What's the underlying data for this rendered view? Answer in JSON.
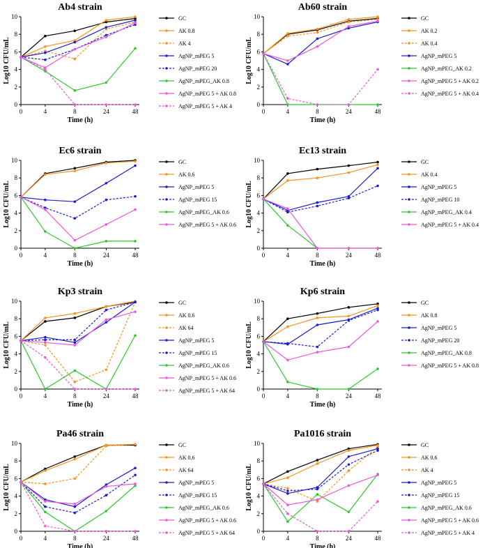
{
  "figure": {
    "title": "Bacterial growth curves of eight strains under AgNP_mPEG and amikacin (AK) treatments"
  },
  "colors": {
    "GC": "#000000",
    "AK": "#f7931e",
    "AgNP": "#1c1ccc",
    "AgNP_AK": "#2dc82d",
    "combo": "#ee55dd"
  },
  "chart_data": [
    {
      "type": "line",
      "title": "Ab4 strain",
      "xlabel": "Time (h)",
      "ylabel": "Log10 CFU/mL",
      "categories": [
        "0",
        "4",
        "8",
        "24",
        "48"
      ],
      "ylim": [
        0,
        10
      ],
      "yticks": [
        "0",
        "2",
        "4",
        "6",
        "8",
        "10"
      ],
      "series": [
        {
          "name": "GC",
          "color": "#000000",
          "dashed": false,
          "values": [
            5.4,
            7.8,
            8.4,
            9.4,
            9.8
          ]
        },
        {
          "name": "AK 0.8",
          "color": "#f7931e",
          "dashed": false,
          "values": [
            5.4,
            6.6,
            7.3,
            9.6,
            10.0
          ]
        },
        {
          "name": "AK 4",
          "color": "#f7931e",
          "dashed": true,
          "values": [
            5.4,
            6.1,
            5.2,
            8.6,
            9.4
          ]
        },
        {
          "name": "AgNP_mPEG 5",
          "color": "#1c1ccc",
          "dashed": false,
          "values": [
            5.4,
            5.9,
            7.1,
            8.8,
            9.6
          ]
        },
        {
          "name": "AgNP_mPEG 20",
          "color": "#1c1ccc",
          "dashed": true,
          "values": [
            5.4,
            5.1,
            6.3,
            7.9,
            9.1
          ]
        },
        {
          "name": "AgNP_mPEG_AK 0.8",
          "color": "#2dc82d",
          "dashed": false,
          "values": [
            5.4,
            3.8,
            1.6,
            2.5,
            6.4
          ]
        },
        {
          "name": "AgNP_mPEG 5 + AK 0.8",
          "color": "#ee55dd",
          "dashed": false,
          "values": [
            5.4,
            4.2,
            6.3,
            7.7,
            9.3
          ]
        },
        {
          "name": "AgNP_mPEG 5 + AK 4",
          "color": "#ee55dd",
          "dashed": true,
          "values": [
            5.4,
            4.0,
            0,
            0,
            0
          ]
        }
      ]
    },
    {
      "type": "line",
      "title": "Ab60 strain",
      "xlabel": "Time (h)",
      "ylabel": "Log10 CFU/mL",
      "categories": [
        "0",
        "4",
        "8",
        "24",
        "48"
      ],
      "ylim": [
        0,
        10
      ],
      "yticks": [
        "0",
        "2",
        "4",
        "6",
        "8",
        "10"
      ],
      "series": [
        {
          "name": "GC",
          "color": "#000000",
          "dashed": false,
          "values": [
            5.8,
            8.0,
            8.5,
            9.5,
            9.8
          ]
        },
        {
          "name": "AK 0.2",
          "color": "#f7931e",
          "dashed": false,
          "values": [
            5.8,
            8.1,
            8.6,
            9.7,
            10.0
          ]
        },
        {
          "name": "AK 0.4",
          "color": "#f7931e",
          "dashed": true,
          "values": [
            5.8,
            7.8,
            8.2,
            9.4,
            9.7
          ]
        },
        {
          "name": "AgNP_mPEG 5",
          "color": "#1c1ccc",
          "dashed": false,
          "values": [
            5.8,
            4.6,
            7.5,
            8.7,
            9.4
          ]
        },
        {
          "name": "AgNP_mPEG_AK 0.2",
          "color": "#2dc82d",
          "dashed": false,
          "values": [
            5.8,
            0,
            0,
            0,
            0
          ]
        },
        {
          "name": "AgNP_mPEG 5 + AK 0.2",
          "color": "#ee55dd",
          "dashed": false,
          "values": [
            5.8,
            5.0,
            6.6,
            8.9,
            9.5
          ]
        },
        {
          "name": "AgNP_mPEG 5 + AK 0.4",
          "color": "#ee55dd",
          "dashed": true,
          "values": [
            5.8,
            0.7,
            0,
            0,
            4.0
          ]
        }
      ]
    },
    {
      "type": "line",
      "title": "Ec6 strain",
      "xlabel": "Time (h)",
      "ylabel": "Log10 CFU/mL",
      "categories": [
        "0",
        "4",
        "8",
        "24",
        "48"
      ],
      "ylim": [
        0,
        10
      ],
      "yticks": [
        "0",
        "2",
        "4",
        "6",
        "8",
        "10"
      ],
      "series": [
        {
          "name": "GC",
          "color": "#000000",
          "dashed": false,
          "values": [
            5.8,
            8.5,
            9.1,
            9.8,
            10.0
          ]
        },
        {
          "name": "AK 0.6",
          "color": "#f7931e",
          "dashed": false,
          "values": [
            5.8,
            8.4,
            8.8,
            9.7,
            9.9
          ]
        },
        {
          "name": "AgNP_mPEG 5",
          "color": "#1c1ccc",
          "dashed": false,
          "values": [
            5.8,
            5.5,
            5.3,
            7.4,
            9.4
          ]
        },
        {
          "name": "AgNP_mPEG 15",
          "color": "#1c1ccc",
          "dashed": true,
          "values": [
            5.8,
            4.6,
            3.4,
            5.5,
            5.9
          ]
        },
        {
          "name": "AgNP_mPEG_AK 0.6",
          "color": "#2dc82d",
          "dashed": false,
          "values": [
            5.8,
            1.9,
            0,
            0.8,
            0.8
          ]
        },
        {
          "name": "AgNP_mPEG 5 + AK 0.6",
          "color": "#ee55dd",
          "dashed": false,
          "values": [
            5.8,
            4.4,
            0.9,
            2.7,
            4.4
          ]
        }
      ]
    },
    {
      "type": "line",
      "title": "Ec13 strain",
      "xlabel": "Time (h)",
      "ylabel": "Log10 CFU/mL",
      "categories": [
        "0",
        "4",
        "8",
        "24",
        "48"
      ],
      "ylim": [
        0,
        10
      ],
      "yticks": [
        "0",
        "2",
        "4",
        "6",
        "8",
        "10"
      ],
      "series": [
        {
          "name": "GC",
          "color": "#000000",
          "dashed": false,
          "values": [
            5.6,
            8.5,
            9.0,
            9.4,
            9.8
          ]
        },
        {
          "name": "AK 0.4",
          "color": "#f7931e",
          "dashed": false,
          "values": [
            5.6,
            7.7,
            8.0,
            8.6,
            9.5
          ]
        },
        {
          "name": "AgNP_mPEG 5",
          "color": "#1c1ccc",
          "dashed": false,
          "values": [
            5.6,
            4.3,
            5.2,
            5.9,
            9.1
          ]
        },
        {
          "name": "AgNP_mPEG 10",
          "color": "#1c1ccc",
          "dashed": true,
          "values": [
            5.6,
            4.1,
            4.8,
            5.7,
            7.1
          ]
        },
        {
          "name": "AgNP_mPEG_AK 0.4",
          "color": "#2dc82d",
          "dashed": false,
          "values": [
            5.6,
            2.6,
            0,
            0,
            0
          ]
        },
        {
          "name": "AgNP_mPEG 5 + AK 0.4",
          "color": "#ee55dd",
          "dashed": false,
          "values": [
            5.6,
            4.5,
            0,
            0,
            0
          ]
        }
      ]
    },
    {
      "type": "line",
      "title": "Kp3 strain",
      "xlabel": "Time (h)",
      "ylabel": "Log10 CFU/mL",
      "categories": [
        "0",
        "4",
        "8",
        "24",
        "48"
      ],
      "ylim": [
        0,
        10
      ],
      "yticks": [
        "0",
        "2",
        "4",
        "6",
        "8",
        "10"
      ],
      "series": [
        {
          "name": "GC",
          "color": "#000000",
          "dashed": false,
          "values": [
            5.5,
            7.7,
            8.1,
            9.4,
            9.9
          ]
        },
        {
          "name": "AK 0.6",
          "color": "#f7931e",
          "dashed": false,
          "values": [
            5.5,
            8.1,
            8.6,
            9.4,
            10.0
          ]
        },
        {
          "name": "AK 64",
          "color": "#f7931e",
          "dashed": true,
          "values": [
            5.5,
            5.0,
            0.8,
            2.2,
            9.9
          ]
        },
        {
          "name": "AgNP_mPEG 5",
          "color": "#1c1ccc",
          "dashed": false,
          "values": [
            5.5,
            5.9,
            5.3,
            7.6,
            9.9
          ]
        },
        {
          "name": "AgNP_mPEG 15",
          "color": "#1c1ccc",
          "dashed": true,
          "values": [
            5.5,
            5.6,
            5.6,
            9.0,
            9.9
          ]
        },
        {
          "name": "AgNP_mPEG_AK 0.6",
          "color": "#2dc82d",
          "dashed": false,
          "values": [
            5.5,
            0,
            2.1,
            0,
            6.1
          ]
        },
        {
          "name": "AgNP_mPEG 5 + AK 0.6",
          "color": "#ee55dd",
          "dashed": false,
          "values": [
            5.5,
            5.3,
            5.0,
            7.9,
            8.8
          ]
        },
        {
          "name": "AgNP_mPEG 5 + AK 64",
          "color": "#ee55dd",
          "dashed": true,
          "values": [
            5.5,
            3.6,
            0,
            0,
            0
          ]
        }
      ]
    },
    {
      "type": "line",
      "title": "Kp6 strain",
      "xlabel": "Time (h)",
      "ylabel": "Log10 CFU/mL",
      "categories": [
        "0",
        "4",
        "8",
        "24",
        "48"
      ],
      "ylim": [
        0,
        10
      ],
      "yticks": [
        "0",
        "2",
        "4",
        "6",
        "8",
        "10"
      ],
      "series": [
        {
          "name": "GC",
          "color": "#000000",
          "dashed": false,
          "values": [
            5.4,
            8.0,
            8.6,
            9.3,
            9.7
          ]
        },
        {
          "name": "AK 0.8",
          "color": "#f7931e",
          "dashed": false,
          "values": [
            5.4,
            7.1,
            8.1,
            8.3,
            9.5
          ]
        },
        {
          "name": "AgNP_mPEG 5",
          "color": "#1c1ccc",
          "dashed": false,
          "values": [
            5.4,
            5.1,
            7.3,
            7.9,
            9.2
          ]
        },
        {
          "name": "AgNP_mPEG 20",
          "color": "#1c1ccc",
          "dashed": true,
          "values": [
            5.4,
            5.2,
            4.8,
            7.8,
            9.0
          ]
        },
        {
          "name": "AgNP_mPEG_AK 0.8",
          "color": "#2dc82d",
          "dashed": false,
          "values": [
            5.4,
            0.8,
            0,
            0,
            2.3
          ]
        },
        {
          "name": "AgNP_mPEG 5 + AK 0.8",
          "color": "#ee55dd",
          "dashed": false,
          "values": [
            5.4,
            3.3,
            4.2,
            4.8,
            7.7
          ]
        }
      ]
    },
    {
      "type": "line",
      "title": "Pa46 strain",
      "xlabel": "Time (h)",
      "ylabel": "Log10 CFU/mL",
      "categories": [
        "0",
        "4",
        "8",
        "24",
        "48"
      ],
      "ylim": [
        0,
        10
      ],
      "yticks": [
        "0",
        "2",
        "4",
        "6",
        "8",
        "10"
      ],
      "series": [
        {
          "name": "GC",
          "color": "#000000",
          "dashed": false,
          "values": [
            5.6,
            7.1,
            8.5,
            9.8,
            9.8
          ]
        },
        {
          "name": "AK 0.6",
          "color": "#f7931e",
          "dashed": false,
          "values": [
            5.6,
            6.9,
            8.2,
            9.8,
            9.9
          ]
        },
        {
          "name": "AK 64",
          "color": "#f7931e",
          "dashed": true,
          "values": [
            5.6,
            5.4,
            6.0,
            9.7,
            9.9
          ]
        },
        {
          "name": "AgNP_mPEG 5",
          "color": "#1c1ccc",
          "dashed": false,
          "values": [
            5.6,
            3.6,
            2.8,
            5.3,
            7.2
          ]
        },
        {
          "name": "AgNP_mPEG 15",
          "color": "#1c1ccc",
          "dashed": true,
          "values": [
            5.6,
            2.8,
            2.1,
            4.1,
            6.4
          ]
        },
        {
          "name": "AgNP_mPEG_AK 0.6",
          "color": "#2dc82d",
          "dashed": false,
          "values": [
            5.6,
            2.2,
            0,
            2.3,
            5.2
          ]
        },
        {
          "name": "AgNP_mPEG 5 + AK 0.6",
          "color": "#ee55dd",
          "dashed": false,
          "values": [
            5.6,
            3.4,
            3.1,
            5.1,
            5.4
          ]
        },
        {
          "name": "AgNP_mPEG 5 + AK 64",
          "color": "#ee55dd",
          "dashed": true,
          "values": [
            5.6,
            0.6,
            0,
            0,
            0
          ]
        }
      ]
    },
    {
      "type": "line",
      "title": "Pa1016 strain",
      "xlabel": "Time (h)",
      "ylabel": "Log10 CFU/mL",
      "categories": [
        "0",
        "4",
        "8",
        "24",
        "48"
      ],
      "ylim": [
        0,
        10
      ],
      "yticks": [
        "0",
        "2",
        "4",
        "6",
        "8",
        "10"
      ],
      "series": [
        {
          "name": "GC",
          "color": "#000000",
          "dashed": false,
          "values": [
            5.4,
            6.8,
            8.1,
            9.4,
            9.9
          ]
        },
        {
          "name": "AK 0.6",
          "color": "#f7931e",
          "dashed": false,
          "values": [
            5.4,
            6.1,
            7.7,
            9.2,
            9.8
          ]
        },
        {
          "name": "AK 4",
          "color": "#f7931e",
          "dashed": true,
          "values": [
            5.4,
            4.9,
            3.4,
            6.9,
            9.6
          ]
        },
        {
          "name": "AgNP_mPEG 5",
          "color": "#1c1ccc",
          "dashed": false,
          "values": [
            5.4,
            4.3,
            5.0,
            8.5,
            9.4
          ]
        },
        {
          "name": "AgNP_mPEG 15",
          "color": "#1c1ccc",
          "dashed": true,
          "values": [
            5.4,
            4.6,
            4.8,
            7.6,
            9.2
          ]
        },
        {
          "name": "AgNP_mPEG_AK 0.6",
          "color": "#2dc82d",
          "dashed": false,
          "values": [
            5.4,
            1.1,
            4.2,
            2.2,
            6.5
          ]
        },
        {
          "name": "AgNP_mPEG 5 + AK 0.6",
          "color": "#ee55dd",
          "dashed": false,
          "values": [
            5.4,
            3.0,
            3.6,
            5.2,
            6.4
          ]
        },
        {
          "name": "AgNP_mPEG 5 + AK 4",
          "color": "#ee55dd",
          "dashed": true,
          "values": [
            5.4,
            2.0,
            0,
            0,
            3.4
          ]
        }
      ]
    }
  ]
}
